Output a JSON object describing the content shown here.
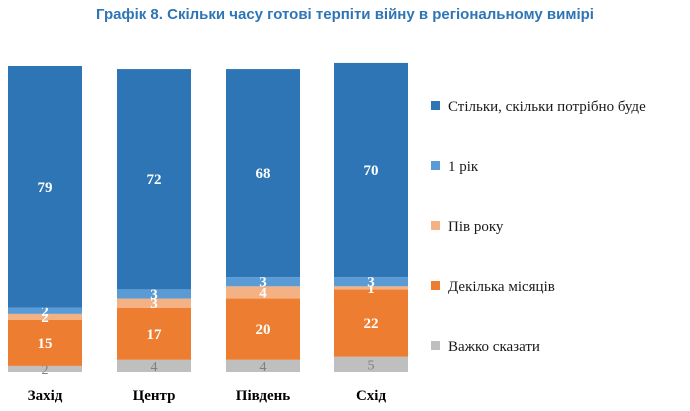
{
  "chart_data": {
    "type": "bar",
    "stacked": true,
    "title": "Графік 8. Скільки часу готові терпіти війну в регіональному вимірі",
    "categories": [
      "Захід",
      "Центр",
      "Південь",
      "Схід"
    ],
    "series": [
      {
        "name": "Важко сказати",
        "values": [
          2,
          4,
          4,
          5
        ],
        "color": "#bfbfbf"
      },
      {
        "name": "Декілька місяців",
        "values": [
          15,
          17,
          20,
          22
        ],
        "color": "#ed7d31"
      },
      {
        "name": "Пів року",
        "values": [
          2,
          3,
          4,
          1
        ],
        "color": "#f4b183"
      },
      {
        "name": "1 рік",
        "values": [
          2,
          3,
          3,
          3
        ],
        "color": "#5b9bd5"
      },
      {
        "name": "Стільки, скільки потрібно буде",
        "values": [
          79,
          72,
          68,
          70
        ],
        "color": "#2e75b6"
      }
    ],
    "legend_order": [
      "Стільки, скільки потрібно буде",
      "1 рік",
      "Пів року",
      "Декілька місяців",
      "Важко сказати"
    ],
    "legend_position": "right",
    "ylim": [
      0,
      100
    ],
    "grid": false
  }
}
